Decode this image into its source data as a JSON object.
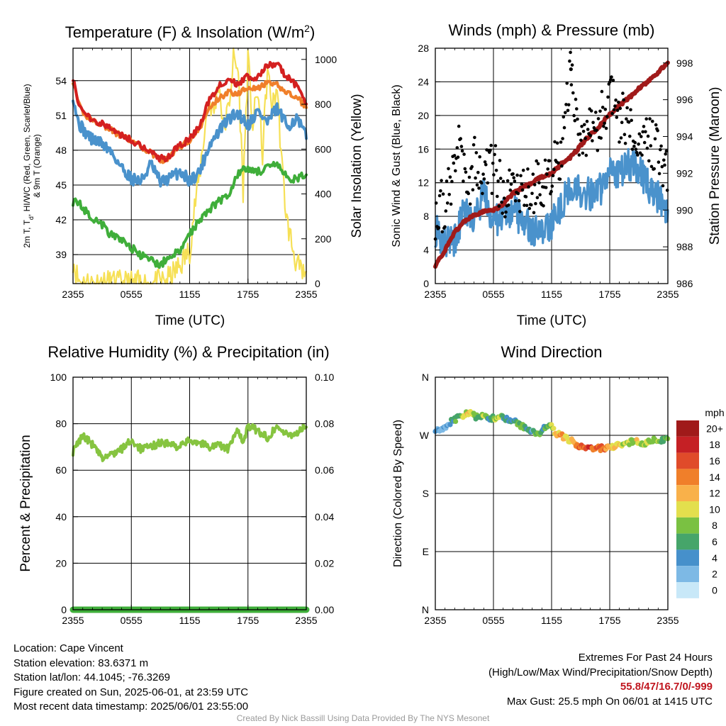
{
  "colors": {
    "temperature": "#d42020",
    "nine_m_temperature": "#f07f2a",
    "dewpoint": "#4a92cc",
    "heat_index": "#3fae3a",
    "insolation": "#f6e056",
    "wind": "#4a92cc",
    "gust": "#000000",
    "pressure": "#a01a1a",
    "humidity": "#86c440",
    "precipitation": "#3fae3a",
    "extremes": "#c0161f"
  },
  "panels": {
    "temperature": {
      "title_main": "Temperature (F) & Insolation (W/m",
      "title_sup": "2",
      "title_close": ")",
      "ylabel_line1_a": "2m T, T",
      "ylabel_line1_sub": "d",
      "ylabel_line1_b": ", HI/WC (Red, Green, Scarlet/Blue)",
      "ylabel_line2": "& 9m T (Orange)",
      "y2label": "Solar Insolation (Yellow)",
      "xlabel": "Time (UTC)",
      "yticks": [
        "39",
        "42",
        "45",
        "48",
        "51",
        "54"
      ],
      "y2ticks": [
        "0",
        "200",
        "400",
        "600",
        "800",
        "1000"
      ],
      "xticks": [
        "2355",
        "0555",
        "1155",
        "1755",
        "2355"
      ]
    },
    "winds": {
      "title": "Winds (mph) & Pressure (mb)",
      "ylabel": "Sonic Wind & Gust (Blue, Black)",
      "y2label": "Station Pressure (Maroon)",
      "xlabel": "Time (UTC)",
      "yticks": [
        "0",
        "4",
        "8",
        "12",
        "16",
        "20",
        "24",
        "28"
      ],
      "y2ticks": [
        "986",
        "988",
        "990",
        "992",
        "994",
        "996",
        "998"
      ],
      "xticks": [
        "2355",
        "0555",
        "1155",
        "1755",
        "2355"
      ]
    },
    "humidity": {
      "title": "Relative Humidity (%) & Precipitation (in)",
      "ylabel": "Percent & Precipitation",
      "yticks": [
        "0",
        "20",
        "40",
        "60",
        "80",
        "100"
      ],
      "y2ticks": [
        "0.00",
        "0.02",
        "0.04",
        "0.06",
        "0.08",
        "0.10"
      ],
      "xticks": [
        "2355",
        "0555",
        "1155",
        "1755",
        "2355"
      ]
    },
    "direction": {
      "title": "Wind Direction",
      "ylabel": "Direction (Colored By Speed)",
      "yticks": [
        "N",
        "E",
        "S",
        "W",
        "N"
      ],
      "xticks": [
        "2355",
        "0555",
        "1155",
        "1755",
        "2355"
      ],
      "colorbar_title": "mph",
      "colorbar_labels": [
        "0",
        "2",
        "4",
        "6",
        "8",
        "10",
        "12",
        "14",
        "16",
        "18",
        "20+"
      ]
    }
  },
  "info": {
    "location": "Location: Cape Vincent",
    "elevation": "Station elevation: 83.6371 m",
    "latlon": "Station lat/lon: 44.1045; -76.3269",
    "created": "Figure created on Sun, 2025-06-01, at 23:59 UTC",
    "recent": "Most recent data timestamp: 2025/06/01 23:55:00",
    "extremes_title": "Extremes For Past 24 Hours",
    "extremes_subtitle": "(High/Low/Max Wind/Precipitation/Snow Depth)",
    "extremes_values": "55.8/47/16.7/0/-999",
    "max_gust": "Max Gust: 25.5 mph On 06/01 at 1415 UTC",
    "credit": "Created By Nick Bassill Using Data Provided By The NYS Mesonet"
  },
  "chart_data": [
    {
      "name": "Temperature (F) & Insolation",
      "type": "line",
      "x_unit": "hours since 2355 UTC",
      "xlim": [
        0,
        24
      ],
      "ylim": [
        36.5,
        56.8
      ],
      "y2lim": [
        0,
        1050
      ],
      "series": [
        {
          "name": "2m T",
          "axis": "left",
          "x": [
            0,
            0.5,
            1,
            2,
            3,
            4,
            5,
            6,
            7,
            8,
            9,
            9.5,
            10,
            11,
            12,
            13,
            14,
            15,
            16,
            17,
            18,
            19,
            20,
            21,
            22,
            23,
            24
          ],
          "y": [
            54.3,
            52.3,
            51.3,
            50.7,
            50.3,
            49.8,
            49.3,
            48.9,
            48.4,
            47.9,
            47.3,
            47.2,
            47.6,
            48.4,
            49.0,
            50.0,
            52.3,
            53.6,
            54.0,
            53.7,
            54.4,
            54.2,
            55.3,
            55.4,
            54.3,
            53.6,
            52.2
          ]
        },
        {
          "name": "9m T",
          "axis": "left",
          "x": [
            0,
            0.5,
            1,
            2,
            3,
            4,
            5,
            6,
            7,
            8,
            9,
            9.5,
            10,
            11,
            12,
            13,
            14,
            15,
            16,
            17,
            18,
            19,
            20,
            21,
            22,
            23,
            24
          ],
          "y": [
            54.0,
            52.1,
            51.2,
            50.6,
            50.2,
            49.7,
            49.2,
            48.8,
            48.3,
            47.8,
            47.2,
            47.1,
            47.5,
            48.3,
            48.9,
            49.8,
            51.6,
            52.5,
            53.0,
            52.9,
            53.5,
            53.3,
            53.8,
            53.6,
            53.0,
            52.5,
            51.8
          ]
        },
        {
          "name": "Dewpoint",
          "axis": "left",
          "x": [
            0,
            0.5,
            1,
            2,
            3,
            4,
            5,
            6,
            7,
            8,
            9,
            10,
            11,
            12,
            13,
            14,
            15,
            16,
            17,
            18,
            19,
            20,
            21,
            22,
            23,
            24
          ],
          "y": [
            52.8,
            50.5,
            49.8,
            48.9,
            48.6,
            47.8,
            46.5,
            45.6,
            45.3,
            46.8,
            45.2,
            45.6,
            46.2,
            45.4,
            46.1,
            48.4,
            49.6,
            50.7,
            51.2,
            50.2,
            51.4,
            50.4,
            51.6,
            50.1,
            50.7,
            49.2
          ]
        },
        {
          "name": "Heat Index / Wind Chill",
          "axis": "left",
          "x": [
            0,
            0.5,
            1,
            2,
            3,
            4,
            5,
            6,
            7,
            8,
            9,
            10,
            11,
            12,
            13,
            14,
            15,
            16,
            17,
            18,
            19,
            20,
            21,
            22,
            23,
            24
          ],
          "y": [
            43.6,
            43.5,
            43.0,
            42.2,
            41.6,
            40.6,
            40.3,
            39.6,
            38.9,
            38.5,
            38.1,
            38.9,
            39.2,
            40.8,
            42.0,
            42.9,
            43.6,
            44.2,
            46.1,
            46.4,
            46.2,
            46.4,
            46.8,
            45.6,
            45.5,
            45.9
          ]
        },
        {
          "name": "Solar Insolation",
          "axis": "right",
          "x": [
            0,
            0.5,
            1,
            5,
            8,
            9,
            10,
            11,
            12,
            12.5,
            13,
            13.5,
            14,
            14.5,
            15,
            15.5,
            16,
            16.5,
            17,
            17.5,
            18,
            18.5,
            19,
            19.5,
            20,
            20.5,
            21,
            21.5,
            22,
            22.5,
            23,
            23.5,
            24
          ],
          "y": [
            110,
            20,
            4,
            0,
            0,
            5,
            25,
            80,
            150,
            340,
            480,
            670,
            820,
            760,
            900,
            690,
            780,
            1000,
            950,
            420,
            1000,
            700,
            870,
            580,
            950,
            780,
            880,
            520,
            280,
            180,
            90,
            40,
            30
          ]
        }
      ]
    },
    {
      "name": "Winds (mph) & Pressure (mb)",
      "type": "line",
      "x_unit": "hours since 2355 UTC",
      "xlim": [
        0,
        24
      ],
      "ylim": [
        0,
        28
      ],
      "y2lim": [
        986,
        998.8
      ],
      "series": [
        {
          "name": "Sonic Wind",
          "axis": "left",
          "x": [
            0,
            1,
            2,
            3,
            4,
            5,
            6,
            7,
            8,
            9,
            10,
            11,
            12,
            13,
            14,
            15,
            16,
            17,
            18,
            19,
            20,
            21,
            22,
            23,
            24
          ],
          "y": [
            6.4,
            4.9,
            5.3,
            8.6,
            7.6,
            10.5,
            7.4,
            8.1,
            8.8,
            7.2,
            6.6,
            6.2,
            7.2,
            9.4,
            11.4,
            11.0,
            10.6,
            11.2,
            13.2,
            13.0,
            14.2,
            13.6,
            11.5,
            10.2,
            8.6
          ]
        },
        {
          "name": "Gust",
          "axis": "left",
          "type": "scatter",
          "x": [
            0,
            1,
            2,
            2.5,
            3,
            3.5,
            4,
            5,
            6,
            7,
            8,
            9,
            10,
            10.5,
            11,
            12,
            13,
            14,
            15,
            16,
            17,
            17.5,
            18,
            19,
            20,
            21,
            22,
            23,
            24
          ],
          "y": [
            8.5,
            9.5,
            14,
            16,
            13,
            12,
            15,
            13,
            14,
            11,
            10,
            11,
            10,
            12,
            11,
            13,
            16,
            25.5,
            17,
            18,
            19,
            21,
            22,
            20,
            19,
            18,
            17,
            16,
            12
          ]
        },
        {
          "name": "Station Pressure",
          "axis": "right",
          "x": [
            0,
            1,
            2,
            3,
            4,
            5,
            6,
            7,
            8,
            9,
            10,
            11,
            12,
            13,
            14,
            15,
            16,
            17,
            18,
            19,
            20,
            21,
            22,
            23,
            24
          ],
          "y": [
            987.0,
            987.8,
            988.8,
            989.4,
            989.7,
            989.9,
            990.0,
            990.3,
            990.9,
            991.2,
            991.5,
            991.8,
            992.0,
            992.5,
            992.9,
            993.5,
            994.1,
            994.6,
            995.2,
            995.7,
            996.1,
            996.6,
            997.0,
            997.5,
            998.0
          ]
        }
      ]
    },
    {
      "name": "Relative Humidity (%) & Precipitation (in)",
      "type": "line",
      "x_unit": "hours since 2355 UTC",
      "xlim": [
        0,
        24
      ],
      "ylim": [
        0,
        100
      ],
      "y2lim": [
        0,
        0.1
      ],
      "series": [
        {
          "name": "Relative Humidity",
          "axis": "left",
          "x": [
            0,
            1,
            2,
            3,
            4,
            5,
            6,
            7,
            8,
            9,
            10,
            11,
            12,
            13,
            14,
            15,
            16,
            17,
            17.5,
            18,
            19,
            20,
            21,
            22,
            23,
            24
          ],
          "y": [
            68,
            75,
            71,
            65,
            67,
            69,
            73,
            69,
            70,
            72,
            71,
            70,
            73,
            72,
            70,
            71,
            69,
            78,
            71,
            79,
            77,
            74,
            79,
            75,
            76,
            79
          ]
        },
        {
          "name": "Precipitation",
          "axis": "right",
          "x": [
            0,
            24
          ],
          "y": [
            0,
            0
          ]
        }
      ]
    },
    {
      "name": "Wind Direction",
      "type": "scatter",
      "x_unit": "hours since 2355 UTC",
      "xlim": [
        0,
        24
      ],
      "ylim": [
        0,
        360
      ],
      "y_unit": "degrees (N at 0 and 360)",
      "colorbar": {
        "label": "mph",
        "min": 0,
        "max": 20
      },
      "points": [
        {
          "x": 0,
          "y": 280,
          "speed": 5
        },
        {
          "x": 0.5,
          "y": 275,
          "speed": 4
        },
        {
          "x": 1,
          "y": 282,
          "speed": 3
        },
        {
          "x": 1.5,
          "y": 290,
          "speed": 4
        },
        {
          "x": 2,
          "y": 294,
          "speed": 7
        },
        {
          "x": 2.5,
          "y": 298,
          "speed": 8
        },
        {
          "x": 3,
          "y": 303,
          "speed": 10
        },
        {
          "x": 3.5,
          "y": 305,
          "speed": 12
        },
        {
          "x": 4,
          "y": 300,
          "speed": 9
        },
        {
          "x": 4.5,
          "y": 297,
          "speed": 7
        },
        {
          "x": 5,
          "y": 300,
          "speed": 10
        },
        {
          "x": 5.5,
          "y": 298,
          "speed": 5
        },
        {
          "x": 6,
          "y": 296,
          "speed": 8
        },
        {
          "x": 6.5,
          "y": 301,
          "speed": 11
        },
        {
          "x": 7,
          "y": 298,
          "speed": 7
        },
        {
          "x": 7.5,
          "y": 293,
          "speed": 5
        },
        {
          "x": 8,
          "y": 294,
          "speed": 6
        },
        {
          "x": 8.5,
          "y": 288,
          "speed": 8
        },
        {
          "x": 9,
          "y": 284,
          "speed": 10
        },
        {
          "x": 9.5,
          "y": 281,
          "speed": 6
        },
        {
          "x": 10,
          "y": 276,
          "speed": 5
        },
        {
          "x": 10.5,
          "y": 272,
          "speed": 9
        },
        {
          "x": 11,
          "y": 276,
          "speed": 6
        },
        {
          "x": 11.5,
          "y": 285,
          "speed": 7
        },
        {
          "x": 12,
          "y": 283,
          "speed": 9
        },
        {
          "x": 12.5,
          "y": 272,
          "speed": 12
        },
        {
          "x": 13,
          "y": 270,
          "speed": 14
        },
        {
          "x": 13.5,
          "y": 265,
          "speed": 12
        },
        {
          "x": 14,
          "y": 262,
          "speed": 11
        },
        {
          "x": 14.5,
          "y": 256,
          "speed": 14
        },
        {
          "x": 15,
          "y": 252,
          "speed": 16
        },
        {
          "x": 15.5,
          "y": 250,
          "speed": 17
        },
        {
          "x": 16,
          "y": 250,
          "speed": 17
        },
        {
          "x": 16.5,
          "y": 250,
          "speed": 16
        },
        {
          "x": 17,
          "y": 250,
          "speed": 17
        },
        {
          "x": 17.5,
          "y": 251,
          "speed": 15
        },
        {
          "x": 18,
          "y": 253,
          "speed": 13
        },
        {
          "x": 18.5,
          "y": 253,
          "speed": 12
        },
        {
          "x": 19,
          "y": 255,
          "speed": 11
        },
        {
          "x": 19.5,
          "y": 256,
          "speed": 10
        },
        {
          "x": 20,
          "y": 258,
          "speed": 9
        },
        {
          "x": 20.5,
          "y": 262,
          "speed": 10
        },
        {
          "x": 21,
          "y": 260,
          "speed": 12
        },
        {
          "x": 21.5,
          "y": 258,
          "speed": 10
        },
        {
          "x": 22,
          "y": 259,
          "speed": 9
        },
        {
          "x": 22.5,
          "y": 262,
          "speed": 10
        },
        {
          "x": 23,
          "y": 264,
          "speed": 9
        },
        {
          "x": 23.5,
          "y": 262,
          "speed": 8
        },
        {
          "x": 24,
          "y": 265,
          "speed": 7
        }
      ]
    }
  ]
}
